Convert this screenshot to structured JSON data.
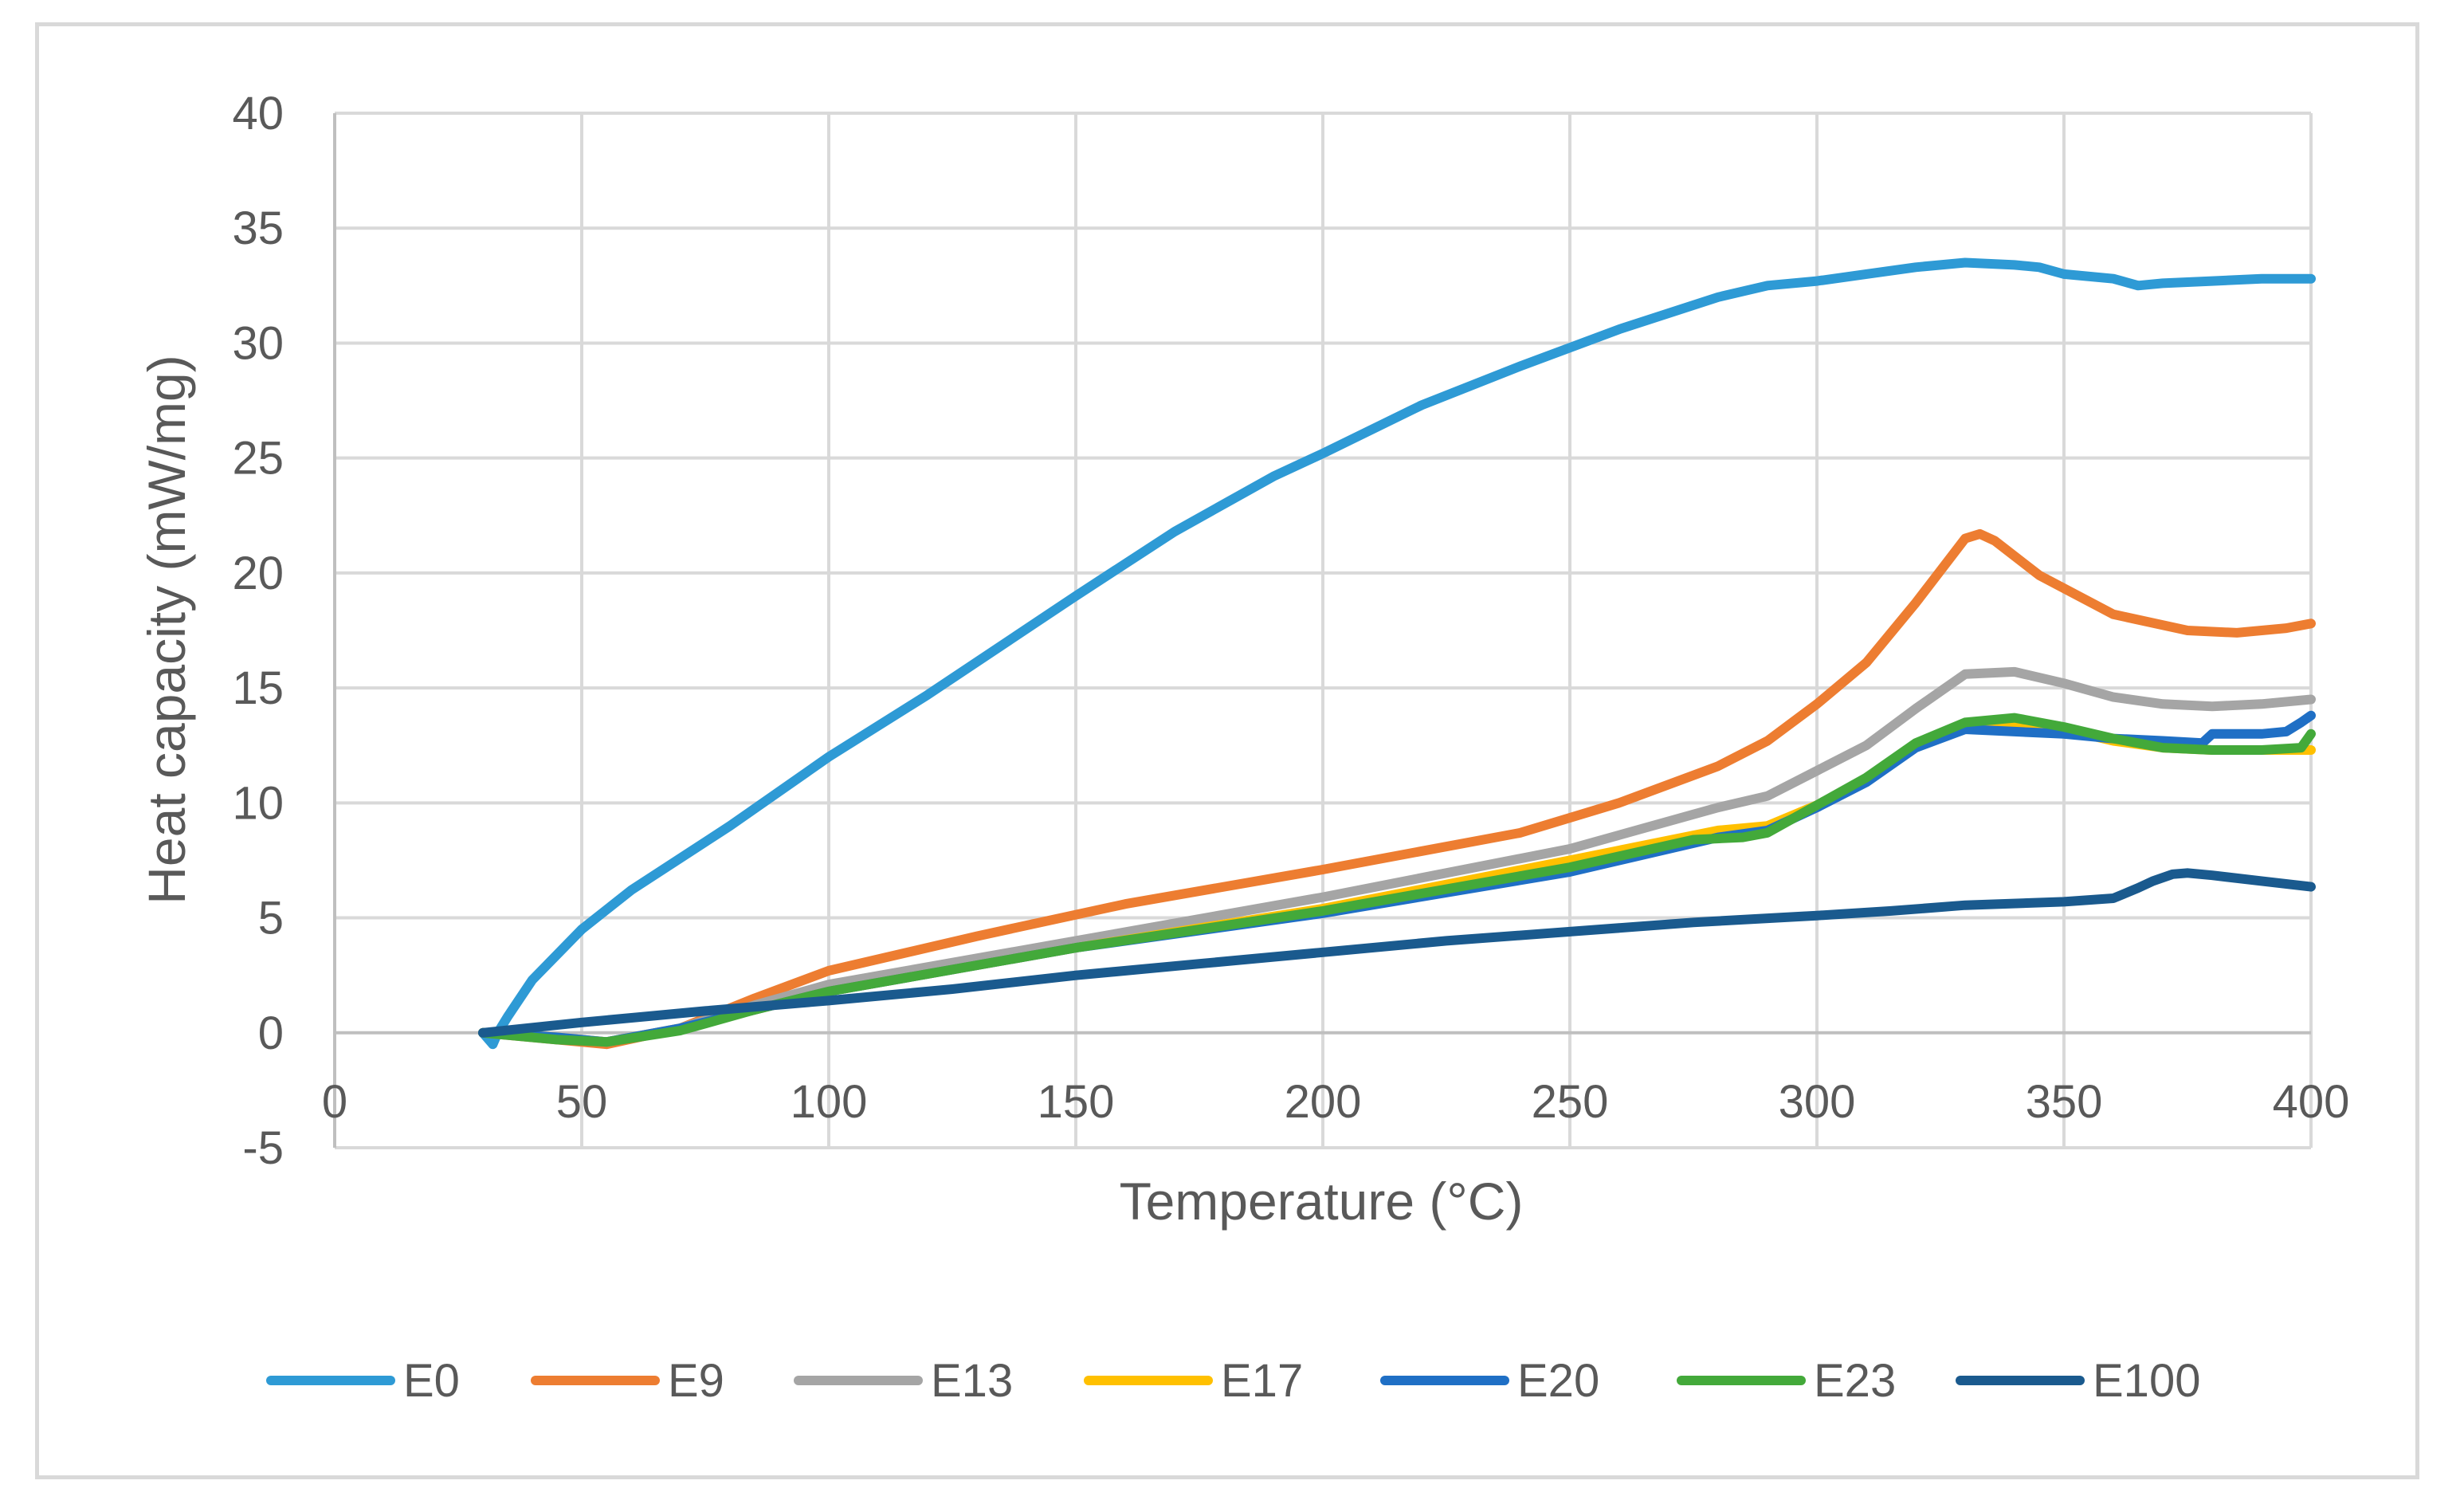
{
  "chart_data": {
    "type": "line",
    "title": "",
    "xlabel": "Temperature (°C)",
    "ylabel": "Heat capacity (mW/mg)",
    "xlim": [
      0,
      400
    ],
    "ylim": [
      -5,
      40
    ],
    "xticks": [
      0,
      50,
      100,
      150,
      200,
      250,
      300,
      350,
      400
    ],
    "yticks": [
      -5,
      0,
      5,
      10,
      15,
      20,
      25,
      30,
      35,
      40
    ],
    "grid": true,
    "legend_position": "bottom",
    "series": [
      {
        "name": "E0",
        "color": "#2E9AD5",
        "x": [
          30,
          32,
          33,
          35,
          40,
          50,
          60,
          80,
          100,
          120,
          150,
          170,
          190,
          200,
          220,
          240,
          260,
          280,
          290,
          300,
          310,
          320,
          330,
          340,
          345,
          350,
          360,
          365,
          370,
          380,
          390,
          400
        ],
        "y": [
          0,
          -0.5,
          0,
          0.7,
          2.3,
          4.5,
          6.2,
          9.0,
          12.0,
          14.7,
          19.0,
          21.8,
          24.2,
          25.2,
          27.3,
          29.0,
          30.6,
          32.0,
          32.5,
          32.7,
          33.0,
          33.3,
          33.5,
          33.4,
          33.3,
          33.0,
          32.8,
          32.5,
          32.6,
          32.7,
          32.8,
          32.8
        ]
      },
      {
        "name": "E9",
        "color": "#ED7D31",
        "x": [
          30,
          40,
          55,
          70,
          85,
          100,
          130,
          160,
          200,
          240,
          260,
          280,
          290,
          300,
          310,
          320,
          330,
          333,
          336,
          345,
          360,
          375,
          385,
          395,
          400
        ],
        "y": [
          0,
          -0.2,
          -0.5,
          0.2,
          1.5,
          2.7,
          4.2,
          5.6,
          7.1,
          8.7,
          10.0,
          11.6,
          12.7,
          14.3,
          16.1,
          18.7,
          21.5,
          21.7,
          21.4,
          19.9,
          18.2,
          17.5,
          17.4,
          17.6,
          17.8
        ]
      },
      {
        "name": "E13",
        "color": "#A5A5A5",
        "x": [
          30,
          45,
          55,
          70,
          85,
          100,
          150,
          200,
          250,
          280,
          290,
          300,
          310,
          320,
          330,
          340,
          350,
          360,
          370,
          380,
          390,
          400
        ],
        "y": [
          0,
          -0.2,
          -0.4,
          0.2,
          1.2,
          2.1,
          4.0,
          5.9,
          8.0,
          9.8,
          10.3,
          11.4,
          12.5,
          14.1,
          15.6,
          15.7,
          15.2,
          14.6,
          14.3,
          14.2,
          14.3,
          14.5
        ]
      },
      {
        "name": "E17",
        "color": "#FFC000",
        "x": [
          30,
          45,
          55,
          70,
          85,
          100,
          150,
          200,
          250,
          280,
          290,
          300,
          310,
          320,
          330,
          340,
          350,
          360,
          370,
          380,
          390,
          400
        ],
        "y": [
          0,
          -0.2,
          -0.4,
          0.2,
          1.0,
          1.8,
          3.7,
          5.4,
          7.5,
          8.8,
          9.0,
          9.9,
          11.0,
          12.5,
          13.3,
          13.5,
          13.2,
          12.7,
          12.4,
          12.3,
          12.3,
          12.3
        ]
      },
      {
        "name": "E20",
        "color": "#1F6FC5",
        "x": [
          30,
          45,
          55,
          70,
          85,
          100,
          150,
          200,
          250,
          280,
          290,
          300,
          310,
          320,
          330,
          340,
          350,
          360,
          370,
          378,
          380,
          390,
          395,
          398,
          400
        ],
        "y": [
          0,
          -0.2,
          -0.4,
          0.2,
          1.0,
          1.8,
          3.7,
          5.2,
          7.0,
          8.5,
          8.8,
          9.8,
          10.9,
          12.4,
          13.2,
          13.1,
          13.0,
          12.8,
          12.7,
          12.6,
          13.0,
          13.0,
          13.1,
          13.5,
          13.8
        ]
      },
      {
        "name": "E23",
        "color": "#43A93A",
        "x": [
          30,
          45,
          55,
          70,
          85,
          100,
          150,
          200,
          250,
          275,
          285,
          290,
          300,
          310,
          320,
          330,
          340,
          350,
          360,
          370,
          380,
          390,
          398,
          400
        ],
        "y": [
          0,
          -0.3,
          -0.4,
          0.1,
          1.0,
          1.8,
          3.7,
          5.3,
          7.2,
          8.4,
          8.5,
          8.7,
          9.9,
          11.1,
          12.6,
          13.5,
          13.7,
          13.3,
          12.8,
          12.4,
          12.3,
          12.3,
          12.4,
          13.0
        ]
      },
      {
        "name": "E100",
        "color": "#1A5A8E",
        "x": [
          30,
          50,
          75,
          100,
          125,
          150,
          175,
          200,
          225,
          250,
          275,
          300,
          315,
          330,
          350,
          360,
          365,
          368,
          372,
          375,
          380,
          390,
          400
        ],
        "y": [
          0,
          0.45,
          0.95,
          1.4,
          1.9,
          2.5,
          3.0,
          3.5,
          4.0,
          4.4,
          4.8,
          5.1,
          5.3,
          5.55,
          5.7,
          5.85,
          6.3,
          6.6,
          6.9,
          6.95,
          6.85,
          6.6,
          6.35
        ]
      }
    ]
  }
}
